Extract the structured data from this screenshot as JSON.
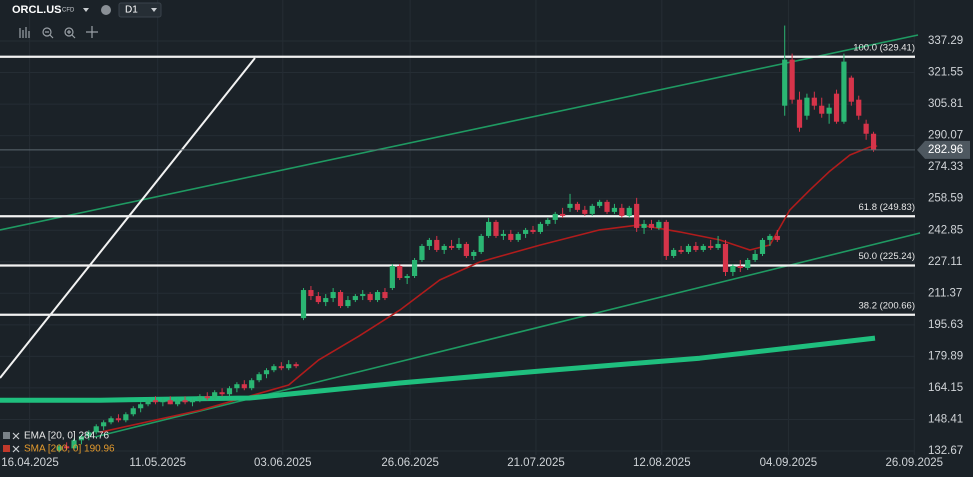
{
  "chart_data": {
    "type": "candlestick",
    "symbol": "ORCL.US",
    "instrument": "CFD",
    "timeframe": "D1",
    "up_color": "#2bb673",
    "down_color": "#d6344a",
    "grid": true,
    "xlim": [
      -8,
      115.6
    ],
    "xticks": [
      {
        "value": -4,
        "label": "16.04.2025"
      },
      {
        "value": 13.3,
        "label": "11.05.2025"
      },
      {
        "value": 30.2,
        "label": "03.06.2025"
      },
      {
        "value": 47.4,
        "label": "26.06.2025"
      },
      {
        "value": 64.4,
        "label": "21.07.2025"
      },
      {
        "value": 81.4,
        "label": "12.08.2025"
      },
      {
        "value": 98.5,
        "label": "04.09.2025"
      },
      {
        "value": 115.5,
        "label": "26.09.2025"
      }
    ],
    "ylim": [
      130.67,
      357.75
    ],
    "yticks": [
      337.29,
      321.55,
      305.81,
      290.07,
      274.33,
      258.59,
      242.85,
      227.11,
      211.37,
      195.63,
      179.89,
      164.15,
      148.41,
      132.67
    ],
    "last_price": 282.96,
    "fib_levels": [
      {
        "value": 329.41,
        "label": "100.0 (329.41)"
      },
      {
        "value": 249.83,
        "label": "61.8 (249.83)"
      },
      {
        "value": 225.24,
        "label": "50.0 (225.24)"
      },
      {
        "value": 200.66,
        "label": "38.2 (200.66)"
      }
    ],
    "indicators": [
      {
        "name": "EMA [20, 0] 284.76",
        "color": "#b01c1c",
        "legend_color": "#e8e8e8",
        "width": 1.6,
        "x": [
          5.5,
          19,
          31,
          35,
          40.5,
          46,
          51.4,
          56.8,
          65,
          73,
          78.4,
          83.8,
          89.2,
          93.3,
          96,
          98.7,
          101.4,
          104,
          106.8,
          109.5,
          110.5
        ],
        "values": [
          142,
          153,
          165.6,
          178,
          190,
          203,
          218,
          227,
          235.5,
          243,
          245.5,
          242,
          238,
          233,
          235.5,
          253,
          263,
          272,
          280.4,
          284.4,
          284.9
        ]
      },
      {
        "name": "SMA [200, 0] 190.96",
        "color": "#1fbf7e",
        "legend_color": "#e39a2d",
        "width": 5,
        "x": [
          -8,
          5.5,
          25.7,
          46,
          66.3,
          86.5,
          100,
          110.2
        ],
        "values": [
          158,
          158,
          159.1,
          166.6,
          173,
          179,
          184.6,
          189
        ]
      }
    ],
    "candles": [
      [
        133,
        136,
        132,
        135
      ],
      [
        135,
        137,
        133,
        134
      ],
      [
        134,
        139,
        133,
        138
      ],
      [
        138,
        141,
        136,
        140
      ],
      [
        140,
        143,
        138,
        142
      ],
      [
        142,
        146,
        141,
        145
      ],
      [
        145,
        148,
        143,
        147
      ],
      [
        147,
        150,
        146,
        149
      ],
      [
        149,
        151,
        147,
        148
      ],
      [
        148,
        152,
        147,
        151
      ],
      [
        151,
        155,
        150,
        154
      ],
      [
        154,
        157,
        152,
        156
      ],
      [
        156,
        159,
        155,
        158
      ],
      [
        158,
        160,
        156,
        157
      ],
      [
        157,
        159,
        155,
        158
      ],
      [
        158,
        160,
        156,
        156
      ],
      [
        156,
        159,
        155,
        158
      ],
      [
        158,
        160,
        156,
        157
      ],
      [
        157,
        159,
        155,
        158
      ],
      [
        158,
        161,
        157,
        160
      ],
      [
        160,
        162,
        158,
        159
      ],
      [
        159,
        163,
        158,
        162
      ],
      [
        162,
        164,
        160,
        161
      ],
      [
        161,
        165,
        160,
        164
      ],
      [
        164,
        167,
        162,
        166
      ],
      [
        166,
        168,
        163,
        164
      ],
      [
        164,
        169,
        163,
        168
      ],
      [
        168,
        172,
        167,
        171
      ],
      [
        171,
        174,
        169,
        173
      ],
      [
        173,
        176,
        172,
        175
      ],
      [
        175,
        177,
        173,
        174
      ],
      [
        174,
        178,
        173,
        176
      ],
      [
        176,
        177,
        174,
        175
      ],
      [
        199,
        214,
        198,
        213
      ],
      [
        213,
        215,
        208,
        210
      ],
      [
        210,
        212,
        206,
        207
      ],
      [
        207,
        211,
        205,
        209
      ],
      [
        209,
        214,
        207,
        212
      ],
      [
        212,
        213,
        204,
        205
      ],
      [
        205,
        210,
        204,
        208
      ],
      [
        208,
        211,
        207,
        210
      ],
      [
        210,
        213,
        208,
        211
      ],
      [
        211,
        212,
        207,
        208
      ],
      [
        208,
        213,
        207,
        212
      ],
      [
        212,
        214,
        208,
        209
      ],
      [
        214,
        226,
        213,
        225
      ],
      [
        225,
        226,
        218,
        219
      ],
      [
        219,
        221,
        216,
        220
      ],
      [
        220,
        229,
        219,
        228
      ],
      [
        228,
        236,
        227,
        235
      ],
      [
        235,
        239,
        233,
        238
      ],
      [
        238,
        240,
        232,
        233
      ],
      [
        233,
        236,
        231,
        235
      ],
      [
        235,
        238,
        233,
        234
      ],
      [
        234,
        239,
        233,
        236
      ],
      [
        236,
        237,
        229,
        230
      ],
      [
        230,
        233,
        228,
        232
      ],
      [
        232,
        241,
        231,
        240
      ],
      [
        240,
        249,
        239,
        247
      ],
      [
        247,
        248,
        239,
        240
      ],
      [
        240,
        243,
        238,
        241
      ],
      [
        241,
        243,
        237,
        238
      ],
      [
        238,
        242,
        237,
        241
      ],
      [
        241,
        244,
        239,
        243
      ],
      [
        243,
        245,
        241,
        242
      ],
      [
        242,
        247,
        241,
        246
      ],
      [
        246,
        249,
        245,
        248
      ],
      [
        248,
        252,
        246,
        251
      ],
      [
        251,
        254,
        249,
        250
      ],
      [
        254,
        261,
        252,
        256
      ],
      [
        256,
        257,
        252,
        253
      ],
      [
        253,
        255,
        250,
        251
      ],
      [
        251,
        256,
        250,
        255
      ],
      [
        255,
        258,
        254,
        257
      ],
      [
        257,
        258,
        251,
        252
      ],
      [
        252,
        256,
        251,
        254
      ],
      [
        254,
        256,
        249,
        250
      ],
      [
        250,
        255,
        249,
        254
      ],
      [
        256,
        259,
        242,
        244
      ],
      [
        244,
        248,
        241,
        246
      ],
      [
        246,
        248,
        243,
        244
      ],
      [
        244,
        248,
        243,
        247
      ],
      [
        247,
        248,
        228,
        230
      ],
      [
        230,
        234,
        229,
        233
      ],
      [
        233,
        235,
        231,
        232
      ],
      [
        232,
        236,
        231,
        235
      ],
      [
        235,
        237,
        232,
        233
      ],
      [
        233,
        236,
        232,
        235
      ],
      [
        235,
        238,
        233,
        234
      ],
      [
        234,
        240,
        233,
        236
      ],
      [
        236,
        238,
        220,
        222
      ],
      [
        222,
        226,
        220,
        225
      ],
      [
        225,
        228,
        222,
        224
      ],
      [
        224,
        229,
        223,
        228
      ],
      [
        228,
        233,
        227,
        231
      ],
      [
        231,
        239,
        230,
        238
      ],
      [
        238,
        241,
        235,
        240
      ],
      [
        240,
        243,
        237,
        238
      ],
      [
        305,
        345,
        300,
        328
      ],
      [
        328,
        331,
        306,
        308
      ],
      [
        308,
        312,
        292,
        294
      ],
      [
        300,
        311,
        298,
        309
      ],
      [
        309,
        312,
        303,
        305
      ],
      [
        305,
        309,
        299,
        301
      ],
      [
        301,
        306,
        296,
        304
      ],
      [
        311,
        313,
        296,
        297
      ],
      [
        297,
        331,
        296,
        327
      ],
      [
        319,
        320,
        305,
        307
      ],
      [
        308,
        310,
        298,
        300
      ],
      [
        296,
        298,
        288,
        291
      ],
      [
        291,
        292,
        282,
        283
      ]
    ]
  }
}
